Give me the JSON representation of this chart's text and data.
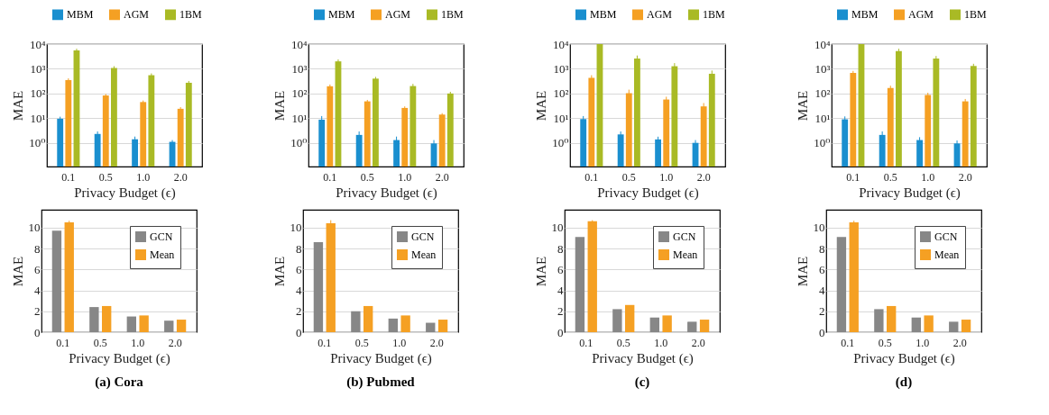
{
  "chart_data": [
    {
      "type": "bar",
      "categories": [
        "0.1",
        "0.5",
        "1.0",
        "2.0"
      ],
      "xlabel": "Privacy Budget (ϵ)",
      "ylabel": "MAE",
      "log": true,
      "ylim": [
        0.11,
        10000
      ],
      "yticks": [
        {
          "value": 1,
          "label": "10⁰"
        },
        {
          "value": 10,
          "label": "10¹"
        },
        {
          "value": 100,
          "label": "10²"
        },
        {
          "value": 1000,
          "label": "10³"
        },
        {
          "value": 10000,
          "label": "10⁴"
        }
      ],
      "grid": "y",
      "legend": "top",
      "series": [
        {
          "name": "MBM",
          "color": "#1a8fcf",
          "values": [
            9.5,
            2.3,
            1.4,
            1.1
          ],
          "errors": [
            2,
            0.6,
            0.4,
            0.2
          ]
        },
        {
          "name": "AGM",
          "color": "#f5a023",
          "values": [
            350,
            83,
            45,
            24
          ],
          "errors": [
            60,
            12,
            7,
            4
          ]
        },
        {
          "name": "1BM",
          "color": "#a9ba25",
          "values": [
            5500,
            1080,
            550,
            272
          ],
          "errors": [
            1000,
            200,
            100,
            50
          ]
        }
      ]
    },
    {
      "type": "bar",
      "categories": [
        "0.1",
        "0.5",
        "1.0",
        "2.0"
      ],
      "xlabel": "Privacy Budget (ϵ)",
      "ylabel": "MAE",
      "log": true,
      "ylim": [
        0.11,
        10000
      ],
      "yticks": [
        {
          "value": 1,
          "label": "10⁰"
        },
        {
          "value": 10,
          "label": "10¹"
        },
        {
          "value": 100,
          "label": "10²"
        },
        {
          "value": 1000,
          "label": "10³"
        },
        {
          "value": 10000,
          "label": "10⁴"
        }
      ],
      "grid": "y",
      "legend": "top",
      "series": [
        {
          "name": "MBM",
          "color": "#1a8fcf",
          "values": [
            8.7,
            2.1,
            1.3,
            0.95
          ],
          "errors": [
            3.5,
            0.8,
            0.5,
            0.35
          ]
        },
        {
          "name": "AGM",
          "color": "#f5a023",
          "values": [
            196,
            48,
            26,
            14
          ],
          "errors": [
            35,
            7,
            4,
            2
          ]
        },
        {
          "name": "1BM",
          "color": "#a9ba25",
          "values": [
            2000,
            400,
            200,
            100
          ],
          "errors": [
            400,
            70,
            45,
            17
          ]
        }
      ]
    },
    {
      "type": "bar",
      "categories": [
        "0.1",
        "0.5",
        "1.0",
        "2.0"
      ],
      "xlabel": "Privacy Budget (ϵ)",
      "ylabel": "MAE",
      "log": true,
      "ylim": [
        0.11,
        10000
      ],
      "yticks": [
        {
          "value": 1,
          "label": "10⁰"
        },
        {
          "value": 10,
          "label": "10¹"
        },
        {
          "value": 100,
          "label": "10²"
        },
        {
          "value": 1000,
          "label": "10³"
        },
        {
          "value": 10000,
          "label": "10⁴"
        }
      ],
      "grid": "y",
      "legend": "top",
      "series": [
        {
          "name": "MBM",
          "color": "#1a8fcf",
          "values": [
            9.2,
            2.2,
            1.38,
            1.0
          ],
          "errors": [
            3,
            0.7,
            0.4,
            0.3
          ]
        },
        {
          "name": "AGM",
          "color": "#f5a023",
          "values": [
            430,
            103,
            57,
            30
          ],
          "errors": [
            120,
            40,
            17,
            11
          ]
        },
        {
          "name": "1BM",
          "color": "#a9ba25",
          "values": [
            10000,
            2600,
            1270,
            630
          ],
          "errors": [
            null,
            850,
            430,
            220
          ]
        }
      ]
    },
    {
      "type": "bar",
      "categories": [
        "0.1",
        "0.5",
        "1.0",
        "2.0"
      ],
      "xlabel": "Privacy Budget (ϵ)",
      "ylabel": "MAE",
      "log": true,
      "ylim": [
        0.11,
        10000
      ],
      "yticks": [
        {
          "value": 1,
          "label": "10⁰"
        },
        {
          "value": 10,
          "label": "10¹"
        },
        {
          "value": 100,
          "label": "10²"
        },
        {
          "value": 1000,
          "label": "10³"
        },
        {
          "value": 10000,
          "label": "10⁴"
        }
      ],
      "grid": "y",
      "legend": "top",
      "series": [
        {
          "name": "MBM",
          "color": "#1a8fcf",
          "values": [
            9,
            2.1,
            1.3,
            0.95
          ],
          "errors": [
            2.8,
            0.8,
            0.4,
            0.3
          ]
        },
        {
          "name": "AGM",
          "color": "#f5a023",
          "values": [
            680,
            167,
            87,
            48
          ],
          "errors": [
            140,
            40,
            20,
            12
          ]
        },
        {
          "name": "1BM",
          "color": "#a9ba25",
          "values": [
            10000,
            5200,
            2600,
            1300
          ],
          "errors": [
            null,
            1300,
            700,
            300
          ]
        }
      ]
    },
    {
      "type": "bar",
      "title": "(a) Cora",
      "categories": [
        "0.1",
        "0.5",
        "1.0",
        "2.0"
      ],
      "xlabel": "Privacy Budget (ϵ)",
      "ylabel": "MAE",
      "ylim": [
        0,
        11.7
      ],
      "yticks": [
        0,
        2,
        4,
        6,
        8,
        10
      ],
      "grid": "y",
      "legend": "top right",
      "series": [
        {
          "name": "GCN",
          "color": "#878787",
          "values": [
            9.7,
            2.4,
            1.5,
            1.1
          ]
        },
        {
          "name": "Mean",
          "color": "#f5a023",
          "values": [
            10.5,
            2.5,
            1.6,
            1.2
          ],
          "errors": [
            0.15,
            null,
            null,
            null
          ]
        }
      ]
    },
    {
      "type": "bar",
      "title": "(b) Pubmed",
      "categories": [
        "0.1",
        "0.5",
        "1.0",
        "2.0"
      ],
      "xlabel": "Privacy Budget (ϵ)",
      "ylabel": "MAE",
      "ylim": [
        0,
        11.7
      ],
      "yticks": [
        0,
        2,
        4,
        6,
        8,
        10
      ],
      "grid": "y",
      "legend": "top right",
      "series": [
        {
          "name": "GCN",
          "color": "#878787",
          "values": [
            8.6,
            2.0,
            1.3,
            0.9
          ]
        },
        {
          "name": "Mean",
          "color": "#f5a023",
          "values": [
            10.4,
            2.5,
            1.6,
            1.2
          ],
          "errors": [
            0.3,
            null,
            null,
            null
          ]
        }
      ]
    },
    {
      "type": "bar",
      "title": "(c)",
      "categories": [
        "0.1",
        "0.5",
        "1.0",
        "2.0"
      ],
      "xlabel": "Privacy Budget (ϵ)",
      "ylabel": "MAE",
      "ylim": [
        0,
        11.7
      ],
      "yticks": [
        0,
        2,
        4,
        6,
        8,
        10
      ],
      "grid": "y",
      "legend": "top right",
      "series": [
        {
          "name": "GCN",
          "color": "#878787",
          "values": [
            9.1,
            2.2,
            1.4,
            1.0
          ]
        },
        {
          "name": "Mean",
          "color": "#f5a023",
          "values": [
            10.6,
            2.6,
            1.6,
            1.2
          ],
          "errors": [
            0.1,
            null,
            null,
            null
          ]
        }
      ]
    },
    {
      "type": "bar",
      "title": "(d)",
      "categories": [
        "0.1",
        "0.5",
        "1.0",
        "2.0"
      ],
      "xlabel": "Privacy Budget (ϵ)",
      "ylabel": "MAE",
      "ylim": [
        0,
        11.7
      ],
      "yticks": [
        0,
        2,
        4,
        6,
        8,
        10
      ],
      "grid": "y",
      "legend": "top right",
      "series": [
        {
          "name": "GCN",
          "color": "#878787",
          "values": [
            9.1,
            2.2,
            1.4,
            1.0
          ]
        },
        {
          "name": "Mean",
          "color": "#f5a023",
          "values": [
            10.5,
            2.5,
            1.6,
            1.2
          ],
          "errors": [
            0.15,
            null,
            null,
            null
          ]
        }
      ]
    }
  ]
}
